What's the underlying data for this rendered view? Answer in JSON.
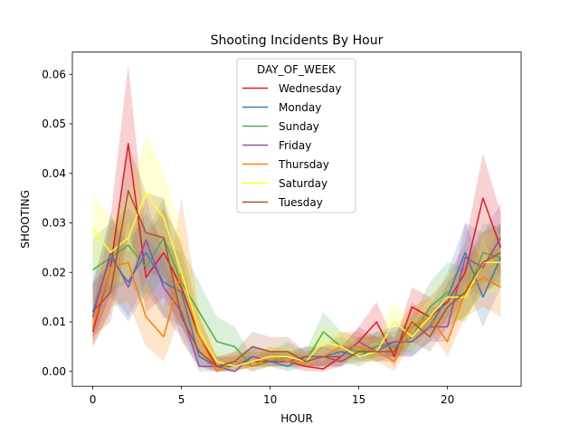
{
  "chart_data": {
    "type": "line",
    "title": "Shooting Incidents By Hour",
    "xlabel": "HOUR",
    "ylabel": "SHOOTING",
    "xlim": [
      -1.15,
      24.15
    ],
    "ylim": [
      -0.003,
      0.0645
    ],
    "xticks": [
      0,
      5,
      10,
      15,
      20
    ],
    "xtick_labels": [
      "0",
      "5",
      "10",
      "15",
      "20"
    ],
    "yticks": [
      0.0,
      0.01,
      0.02,
      0.03,
      0.04,
      0.05,
      0.06
    ],
    "ytick_labels": [
      "0.00",
      "0.01",
      "0.02",
      "0.03",
      "0.04",
      "0.05",
      "0.06"
    ],
    "legend": {
      "title": "DAY_OF_WEEK",
      "position": "upper center"
    },
    "grid": false,
    "x": [
      0,
      1,
      2,
      3,
      4,
      5,
      6,
      7,
      8,
      9,
      10,
      11,
      12,
      13,
      14,
      15,
      16,
      17,
      18,
      19,
      20,
      21,
      22,
      23
    ],
    "series": [
      {
        "name": "Wednesday",
        "color": "#e41a1c",
        "values": [
          0.008,
          0.021,
          0.046,
          0.019,
          0.024,
          0.017,
          0.007,
          0.001,
          0.001,
          0.002,
          0.002,
          0.002,
          0.001,
          0.0005,
          0.003,
          0.006,
          0.01,
          0.003,
          0.013,
          0.011,
          0.014,
          0.02,
          0.035,
          0.025
        ],
        "ci_low": [
          0.005,
          0.012,
          0.031,
          0.012,
          0.015,
          0.009,
          0.003,
          0.0,
          0.0,
          0.001,
          0.001,
          0.001,
          0.0,
          0.0,
          0.001,
          0.004,
          0.006,
          0.001,
          0.009,
          0.008,
          0.01,
          0.015,
          0.027,
          0.019
        ],
        "ci_high": [
          0.012,
          0.031,
          0.062,
          0.027,
          0.033,
          0.026,
          0.011,
          0.003,
          0.003,
          0.004,
          0.004,
          0.004,
          0.003,
          0.002,
          0.005,
          0.009,
          0.014,
          0.006,
          0.017,
          0.015,
          0.019,
          0.026,
          0.044,
          0.032
        ]
      },
      {
        "name": "Monday",
        "color": "#377eb8",
        "values": [
          0.012,
          0.023,
          0.018,
          0.024,
          0.018,
          0.016,
          0.003,
          0.001,
          0.001,
          0.003,
          0.002,
          0.001,
          0.003,
          0.003,
          0.004,
          0.003,
          0.005,
          0.006,
          0.006,
          0.009,
          0.015,
          0.024,
          0.015,
          0.023
        ],
        "ci_low": [
          0.007,
          0.015,
          0.01,
          0.016,
          0.011,
          0.009,
          0.001,
          0.0,
          0.0,
          0.001,
          0.001,
          0.0,
          0.001,
          0.001,
          0.002,
          0.001,
          0.003,
          0.003,
          0.003,
          0.006,
          0.011,
          0.018,
          0.009,
          0.017
        ],
        "ci_high": [
          0.018,
          0.031,
          0.026,
          0.032,
          0.026,
          0.024,
          0.006,
          0.003,
          0.003,
          0.005,
          0.004,
          0.003,
          0.005,
          0.005,
          0.007,
          0.005,
          0.008,
          0.009,
          0.009,
          0.013,
          0.02,
          0.03,
          0.021,
          0.03
        ]
      },
      {
        "name": "Sunday",
        "color": "#4daf4a",
        "values": [
          0.0205,
          0.023,
          0.0255,
          0.021,
          0.027,
          0.018,
          0.012,
          0.006,
          0.005,
          0.001,
          0.002,
          0.003,
          0.002,
          0.008,
          0.005,
          0.004,
          0.005,
          0.005,
          0.007,
          0.013,
          0.016,
          0.015,
          0.024,
          0.023
        ],
        "ci_low": [
          0.014,
          0.016,
          0.018,
          0.014,
          0.019,
          0.011,
          0.007,
          0.003,
          0.002,
          0.0,
          0.001,
          0.001,
          0.001,
          0.005,
          0.003,
          0.002,
          0.003,
          0.003,
          0.004,
          0.009,
          0.011,
          0.01,
          0.018,
          0.017
        ],
        "ci_high": [
          0.027,
          0.03,
          0.033,
          0.028,
          0.035,
          0.025,
          0.018,
          0.011,
          0.009,
          0.003,
          0.004,
          0.006,
          0.004,
          0.012,
          0.008,
          0.007,
          0.008,
          0.008,
          0.011,
          0.018,
          0.022,
          0.021,
          0.03,
          0.029
        ]
      },
      {
        "name": "Friday",
        "color": "#984ea3",
        "values": [
          0.011,
          0.024,
          0.017,
          0.0265,
          0.017,
          0.012,
          0.001,
          0.001,
          0.0,
          0.003,
          0.002,
          0.002,
          0.003,
          0.003,
          0.003,
          0.006,
          0.004,
          0.006,
          0.006,
          0.009,
          0.009,
          0.023,
          0.021,
          0.027
        ],
        "ci_low": [
          0.006,
          0.016,
          0.011,
          0.018,
          0.011,
          0.007,
          0.0,
          0.0,
          0.0,
          0.001,
          0.001,
          0.001,
          0.001,
          0.001,
          0.001,
          0.004,
          0.002,
          0.003,
          0.003,
          0.006,
          0.006,
          0.017,
          0.015,
          0.02
        ],
        "ci_high": [
          0.017,
          0.032,
          0.024,
          0.035,
          0.024,
          0.018,
          0.003,
          0.003,
          0.002,
          0.005,
          0.004,
          0.004,
          0.005,
          0.005,
          0.005,
          0.009,
          0.007,
          0.009,
          0.009,
          0.013,
          0.013,
          0.03,
          0.028,
          0.034
        ]
      },
      {
        "name": "Thursday",
        "color": "#ff7f00",
        "values": [
          0.009,
          0.021,
          0.022,
          0.011,
          0.007,
          0.02,
          0.007,
          0.0,
          0.002,
          0.001,
          0.003,
          0.002,
          0.002,
          0.003,
          0.005,
          0.005,
          0.004,
          0.002,
          0.009,
          0.011,
          0.006,
          0.016,
          0.019,
          0.017
        ],
        "ci_low": [
          0.005,
          0.013,
          0.014,
          0.005,
          0.002,
          0.012,
          0.003,
          0.0,
          0.001,
          0.0,
          0.001,
          0.001,
          0.001,
          0.001,
          0.003,
          0.003,
          0.002,
          0.0,
          0.006,
          0.008,
          0.003,
          0.011,
          0.013,
          0.011
        ],
        "ci_high": [
          0.014,
          0.029,
          0.031,
          0.018,
          0.013,
          0.035,
          0.012,
          0.002,
          0.004,
          0.003,
          0.005,
          0.004,
          0.004,
          0.005,
          0.008,
          0.008,
          0.007,
          0.005,
          0.013,
          0.015,
          0.01,
          0.022,
          0.026,
          0.024
        ]
      },
      {
        "name": "Saturday",
        "color": "#ffff33",
        "values": [
          0.029,
          0.024,
          0.027,
          0.036,
          0.031,
          0.02,
          0.008,
          0.002,
          0.001,
          0.002,
          0.003,
          0.003,
          0.002,
          0.006,
          0.005,
          0.003,
          0.004,
          0.01,
          0.007,
          0.011,
          0.015,
          0.015,
          0.022,
          0.022
        ],
        "ci_low": [
          0.022,
          0.017,
          0.019,
          0.027,
          0.023,
          0.013,
          0.004,
          0.0,
          0.0,
          0.001,
          0.001,
          0.001,
          0.001,
          0.003,
          0.003,
          0.001,
          0.002,
          0.006,
          0.004,
          0.007,
          0.011,
          0.01,
          0.016,
          0.016
        ],
        "ci_high": [
          0.036,
          0.031,
          0.035,
          0.048,
          0.04,
          0.028,
          0.013,
          0.004,
          0.003,
          0.004,
          0.005,
          0.005,
          0.004,
          0.009,
          0.008,
          0.006,
          0.007,
          0.014,
          0.01,
          0.015,
          0.02,
          0.02,
          0.028,
          0.028
        ]
      },
      {
        "name": "Tuesday",
        "color": "#a65628",
        "values": [
          0.012,
          0.016,
          0.0365,
          0.028,
          0.027,
          0.011,
          0.004,
          0.001,
          0.002,
          0.005,
          0.004,
          0.004,
          0.002,
          0.003,
          0.002,
          0.004,
          0.004,
          0.004,
          0.01,
          0.007,
          0.013,
          0.016,
          0.022,
          0.024
        ],
        "ci_low": [
          0.007,
          0.01,
          0.027,
          0.02,
          0.019,
          0.006,
          0.001,
          0.0,
          0.001,
          0.003,
          0.002,
          0.002,
          0.001,
          0.001,
          0.001,
          0.002,
          0.002,
          0.002,
          0.006,
          0.004,
          0.009,
          0.011,
          0.016,
          0.018
        ],
        "ci_high": [
          0.018,
          0.022,
          0.046,
          0.036,
          0.035,
          0.017,
          0.008,
          0.003,
          0.004,
          0.008,
          0.007,
          0.007,
          0.004,
          0.005,
          0.004,
          0.007,
          0.007,
          0.007,
          0.014,
          0.01,
          0.018,
          0.022,
          0.028,
          0.03
        ]
      }
    ]
  }
}
